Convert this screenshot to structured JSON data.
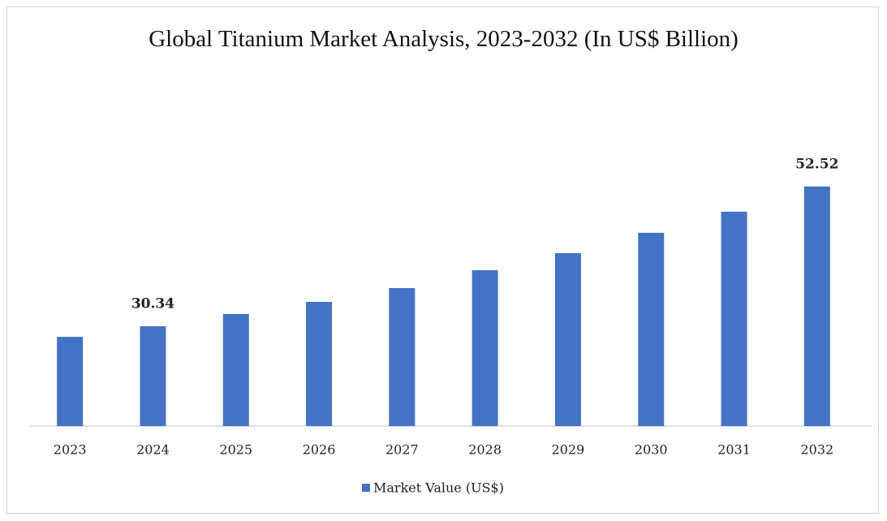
{
  "chart_data": {
    "type": "bar",
    "title": "Global Titanium Market Analysis, 2023-2032 (In US$ Billion)",
    "categories": [
      "2023",
      "2024",
      "2025",
      "2026",
      "2027",
      "2028",
      "2029",
      "2030",
      "2031",
      "2032"
    ],
    "series": [
      {
        "name": "Market Value (US$)",
        "color": "#4472c4",
        "values": [
          28.66,
          30.34,
          32.28,
          34.21,
          36.4,
          39.24,
          41.95,
          45.17,
          48.52,
          52.52
        ],
        "value_labels": [
          null,
          "30.34",
          null,
          null,
          null,
          null,
          null,
          null,
          null,
          "52.52"
        ]
      }
    ],
    "ylim": [
      14.5,
      62.8
    ],
    "grid": false,
    "legend": "bottom"
  }
}
